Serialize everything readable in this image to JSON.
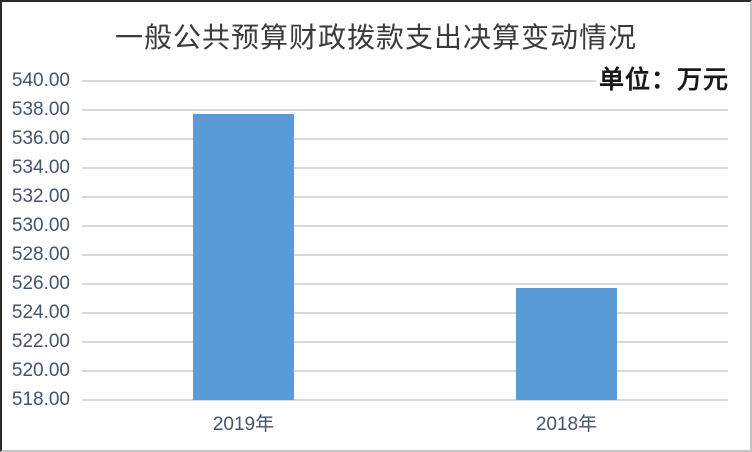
{
  "title": "一般公共预算财政拨款支出决算变动情况",
  "unit_label": "单位：万元",
  "chart_data": {
    "type": "bar",
    "title": "一般公共预算财政拨款支出决算变动情况",
    "unit": "单位：万元",
    "categories": [
      "2019年",
      "2018年"
    ],
    "values": [
      537.7,
      525.7
    ],
    "xlabel": "",
    "ylabel": "",
    "ylim": [
      518,
      540
    ],
    "ytick_step": 2,
    "ytick_decimals": 2,
    "grid": true,
    "legend": false,
    "bar_color": "#5b9bd5",
    "gridline_color": "#d9d9d9",
    "axis_label_color": "#44546a",
    "title_color": "#3b3b3b",
    "unit_label_color": "#191919"
  }
}
